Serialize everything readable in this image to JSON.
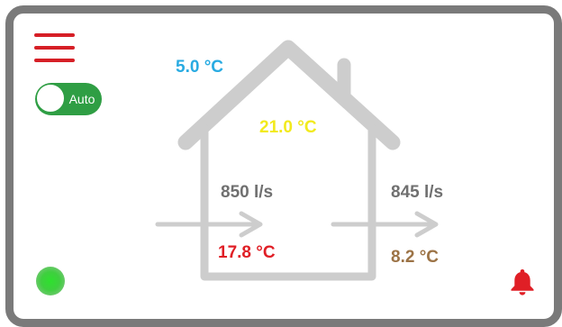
{
  "colors": {
    "frame": "#7a7a7a",
    "house_outline": "#cdcdcd",
    "menu": "#d61f26",
    "toggle_on": "#2f9e44",
    "outdoor_temp": "#29abe2",
    "indoor_temp": "#f2ea1d",
    "supply_temp": "#e01f26",
    "exhaust_temp": "#9c7346",
    "flow_text": "#707070",
    "status_ok": "#3fcf3f",
    "alarm": "#e01f26"
  },
  "icons": {
    "menu": "hamburger-menu-icon",
    "alarm": "bell-icon",
    "status": "status-light-icon"
  },
  "mode": {
    "label": "Auto",
    "enabled": true
  },
  "temperatures": {
    "outdoor": "5.0 °C",
    "indoor": "21.0 °C",
    "supply": "17.8 °C",
    "exhaust": "8.2 °C"
  },
  "airflow": {
    "supply": "850 l/s",
    "exhaust": "845 l/s"
  }
}
